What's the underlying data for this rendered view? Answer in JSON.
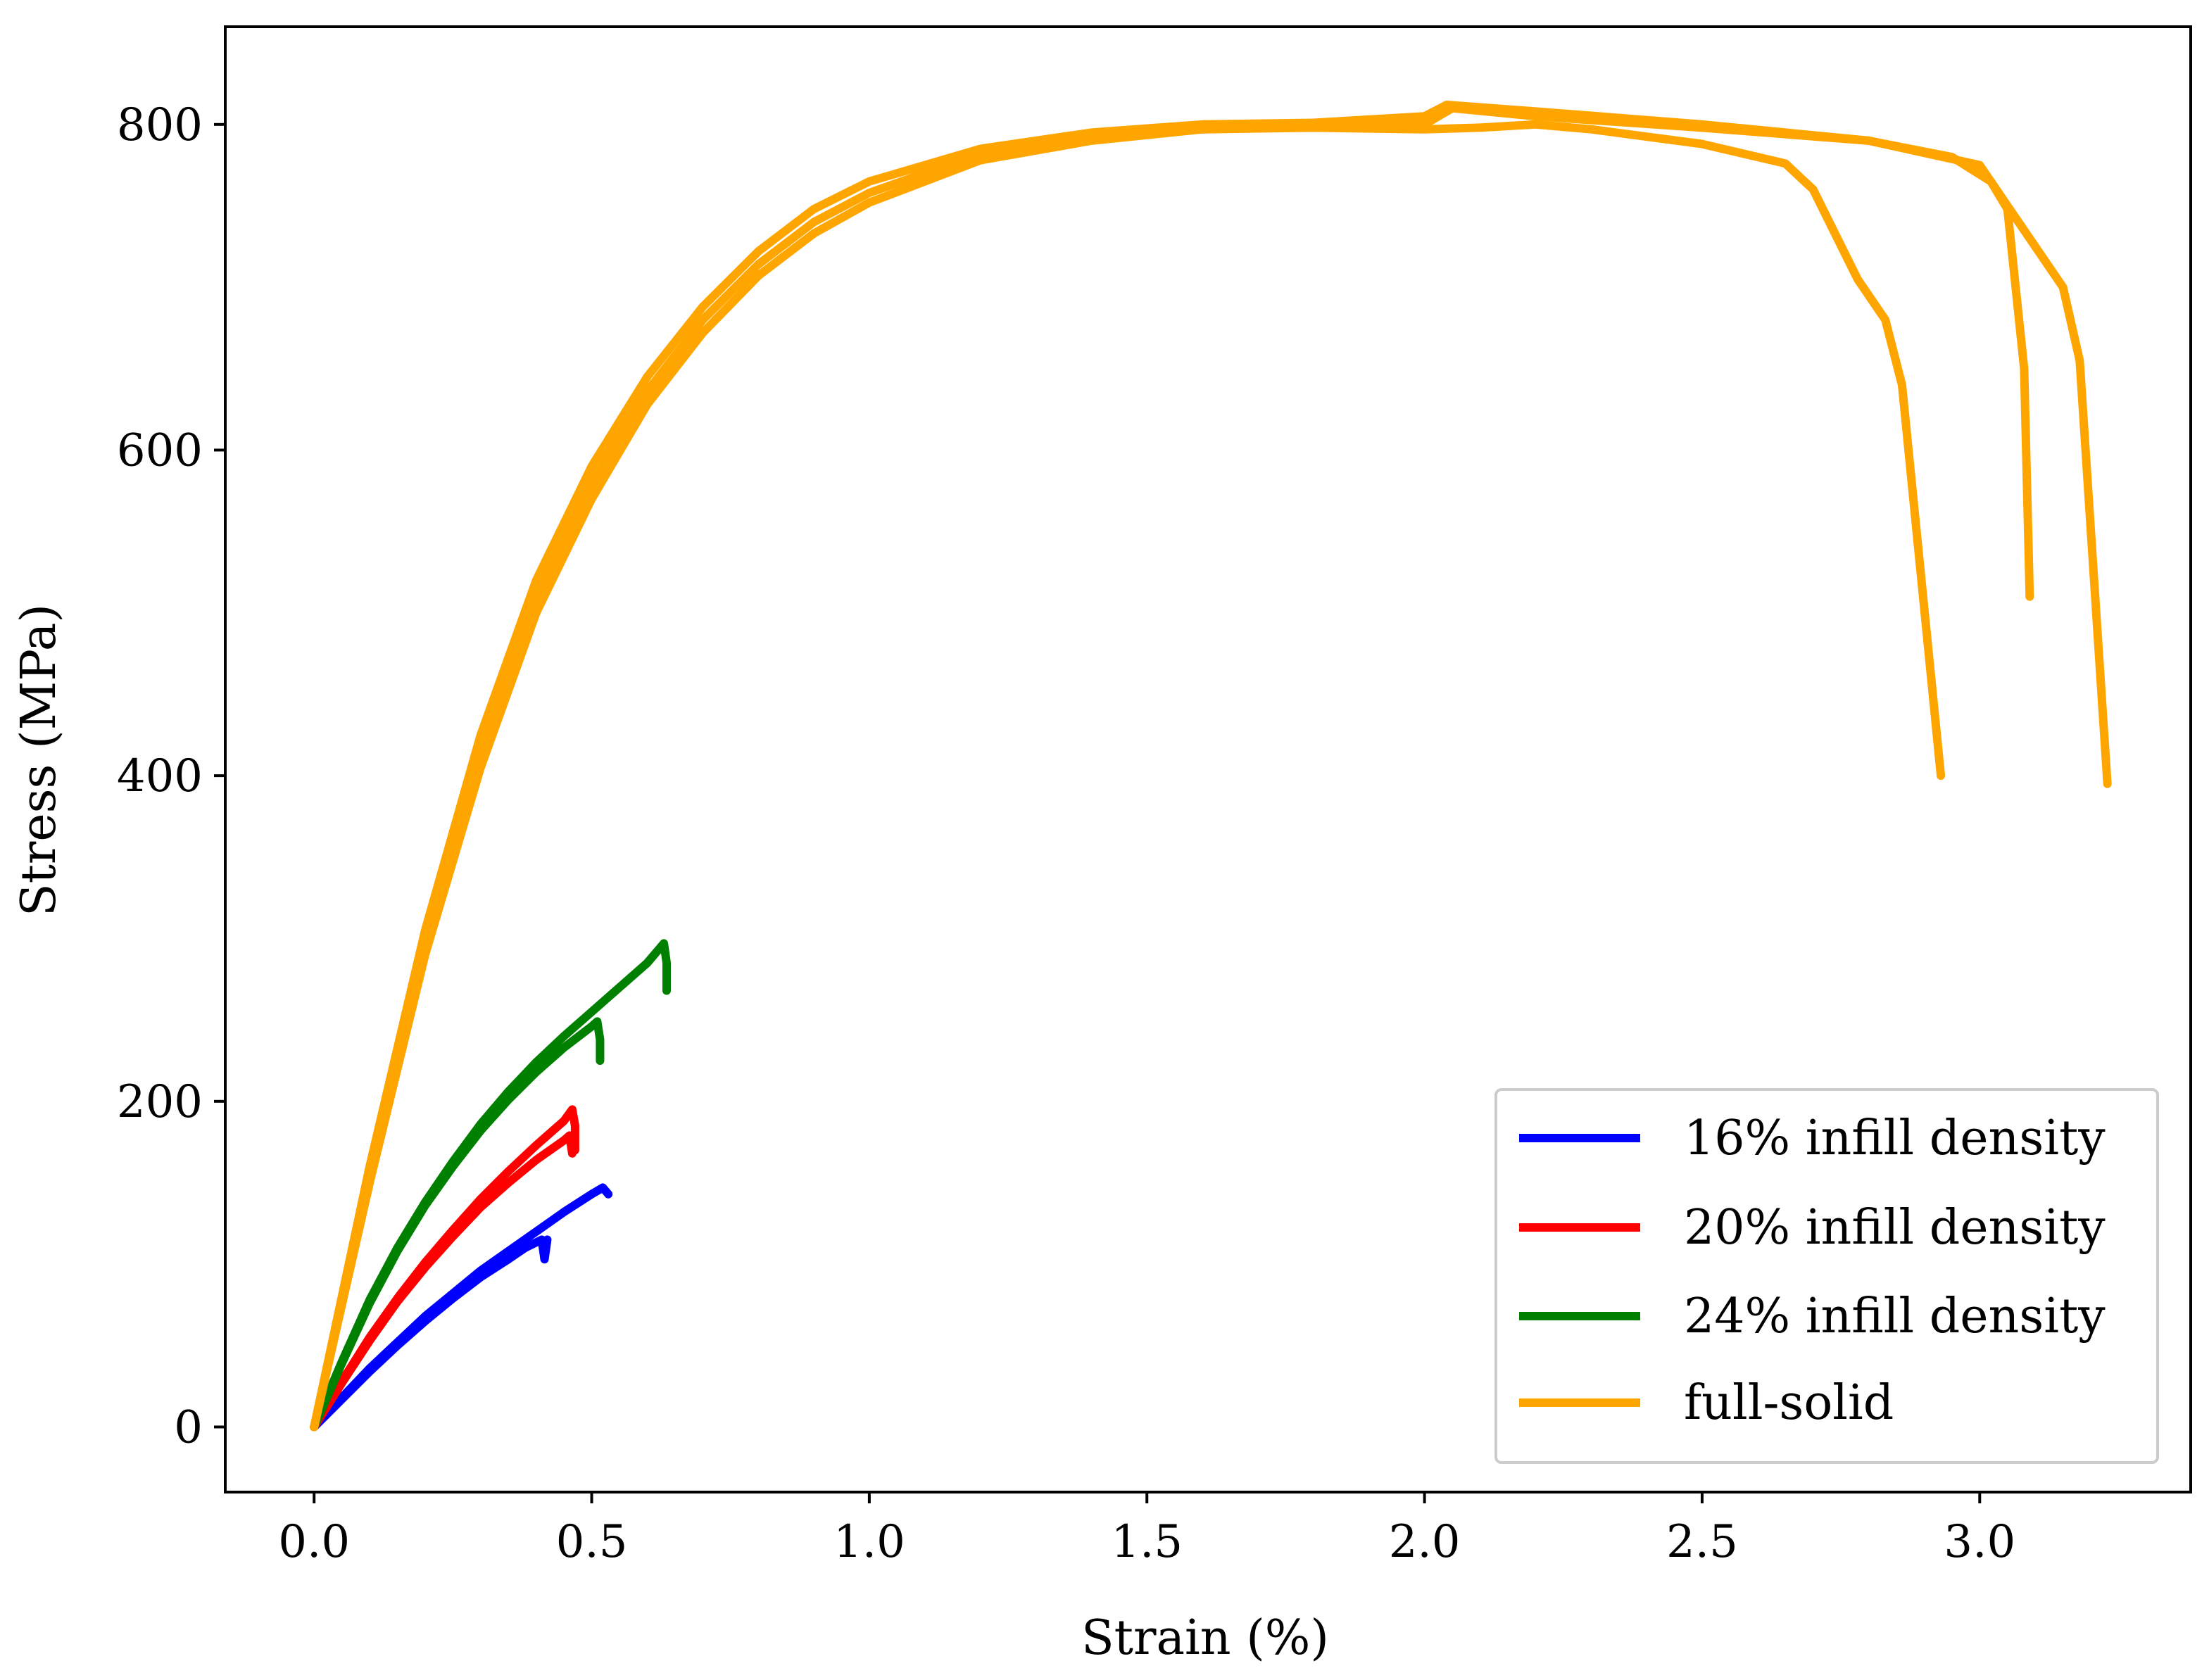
{
  "chart_data": {
    "type": "line",
    "title": "",
    "xlabel": "Strain (%)",
    "ylabel": "Stress (MPa)",
    "xlim": [
      -0.16,
      3.38
    ],
    "ylim": [
      -40,
      860
    ],
    "xticks": [
      0.0,
      0.5,
      1.0,
      1.5,
      2.0,
      2.5,
      3.0
    ],
    "xtick_labels": [
      "0.0",
      "0.5",
      "1.0",
      "1.5",
      "2.0",
      "2.5",
      "3.0"
    ],
    "yticks": [
      0,
      200,
      400,
      600,
      800
    ],
    "ytick_labels": [
      "0",
      "200",
      "400",
      "600",
      "800"
    ],
    "grid": false,
    "legend_position": "bottom-right",
    "series": [
      {
        "name": "16% infill density",
        "color": "#0000ff",
        "curves": [
          [
            [
              0,
              0
            ],
            [
              0.05,
              18
            ],
            [
              0.1,
              36
            ],
            [
              0.15,
              52
            ],
            [
              0.2,
              68
            ],
            [
              0.25,
              82
            ],
            [
              0.3,
              96
            ],
            [
              0.35,
              108
            ],
            [
              0.4,
              120
            ],
            [
              0.45,
              132
            ],
            [
              0.5,
              143
            ],
            [
              0.52,
              147
            ],
            [
              0.53,
              143
            ]
          ],
          [
            [
              0,
              0
            ],
            [
              0.05,
              17
            ],
            [
              0.1,
              34
            ],
            [
              0.15,
              50
            ],
            [
              0.2,
              65
            ],
            [
              0.25,
              79
            ],
            [
              0.3,
              92
            ],
            [
              0.35,
              103
            ],
            [
              0.38,
              110
            ],
            [
              0.41,
              115
            ],
            [
              0.415,
              103
            ],
            [
              0.42,
              115
            ]
          ]
        ]
      },
      {
        "name": "20% infill density",
        "color": "#ff0000",
        "curves": [
          [
            [
              0,
              0
            ],
            [
              0.05,
              28
            ],
            [
              0.1,
              55
            ],
            [
              0.15,
              79
            ],
            [
              0.2,
              101
            ],
            [
              0.25,
              121
            ],
            [
              0.3,
              140
            ],
            [
              0.35,
              157
            ],
            [
              0.4,
              173
            ],
            [
              0.45,
              188
            ],
            [
              0.465,
              195
            ],
            [
              0.47,
              185
            ],
            [
              0.47,
              170
            ]
          ],
          [
            [
              0,
              0
            ],
            [
              0.05,
              27
            ],
            [
              0.1,
              53
            ],
            [
              0.15,
              77
            ],
            [
              0.2,
              98
            ],
            [
              0.25,
              117
            ],
            [
              0.3,
              135
            ],
            [
              0.35,
              150
            ],
            [
              0.4,
              164
            ],
            [
              0.45,
              176
            ],
            [
              0.46,
              179
            ],
            [
              0.465,
              168
            ]
          ]
        ]
      },
      {
        "name": "24% infill density",
        "color": "#008000",
        "curves": [
          [
            [
              0,
              0
            ],
            [
              0.05,
              40
            ],
            [
              0.1,
              78
            ],
            [
              0.15,
              110
            ],
            [
              0.2,
              138
            ],
            [
              0.25,
              163
            ],
            [
              0.3,
              186
            ],
            [
              0.35,
              206
            ],
            [
              0.4,
              224
            ],
            [
              0.45,
              240
            ],
            [
              0.5,
              255
            ],
            [
              0.55,
              270
            ],
            [
              0.6,
              285
            ],
            [
              0.63,
              297
            ],
            [
              0.635,
              285
            ],
            [
              0.635,
              268
            ]
          ],
          [
            [
              0,
              0
            ],
            [
              0.05,
              39
            ],
            [
              0.1,
              76
            ],
            [
              0.15,
              108
            ],
            [
              0.2,
              136
            ],
            [
              0.25,
              160
            ],
            [
              0.3,
              182
            ],
            [
              0.35,
              201
            ],
            [
              0.4,
              218
            ],
            [
              0.45,
              233
            ],
            [
              0.5,
              246
            ],
            [
              0.51,
              249
            ],
            [
              0.515,
              238
            ],
            [
              0.515,
              225
            ]
          ]
        ]
      },
      {
        "name": "full-solid",
        "color": "#ffa500",
        "curves": [
          [
            [
              0,
              0
            ],
            [
              0.1,
              150
            ],
            [
              0.2,
              290
            ],
            [
              0.3,
              405
            ],
            [
              0.4,
              500
            ],
            [
              0.5,
              570
            ],
            [
              0.6,
              628
            ],
            [
              0.7,
              672
            ],
            [
              0.8,
              707
            ],
            [
              0.9,
              733
            ],
            [
              1.0,
              752
            ],
            [
              1.2,
              778
            ],
            [
              1.4,
              790
            ],
            [
              1.6,
              797
            ],
            [
              1.8,
              799
            ],
            [
              2.0,
              800
            ],
            [
              2.05,
              810
            ],
            [
              2.2,
              805
            ],
            [
              2.5,
              798
            ],
            [
              2.8,
              790
            ],
            [
              2.95,
              780
            ],
            [
              3.02,
              765
            ],
            [
              3.05,
              748
            ],
            [
              3.08,
              650
            ],
            [
              3.09,
              510
            ]
          ],
          [
            [
              0,
              0
            ],
            [
              0.1,
              160
            ],
            [
              0.2,
              305
            ],
            [
              0.3,
              425
            ],
            [
              0.4,
              520
            ],
            [
              0.5,
              590
            ],
            [
              0.6,
              645
            ],
            [
              0.7,
              688
            ],
            [
              0.8,
              722
            ],
            [
              0.9,
              748
            ],
            [
              1.0,
              765
            ],
            [
              1.2,
              785
            ],
            [
              1.4,
              795
            ],
            [
              1.6,
              800
            ],
            [
              1.8,
              801
            ],
            [
              2.0,
              805
            ],
            [
              2.04,
              812
            ],
            [
              2.2,
              808
            ],
            [
              2.5,
              800
            ],
            [
              2.8,
              790
            ],
            [
              3.0,
              775
            ],
            [
              3.05,
              750
            ],
            [
              3.15,
              700
            ],
            [
              3.18,
              655
            ],
            [
              3.23,
              395
            ]
          ],
          [
            [
              0,
              0
            ],
            [
              0.1,
              155
            ],
            [
              0.2,
              298
            ],
            [
              0.3,
              415
            ],
            [
              0.4,
              510
            ],
            [
              0.5,
              580
            ],
            [
              0.6,
              636
            ],
            [
              0.7,
              680
            ],
            [
              0.8,
              714
            ],
            [
              0.9,
              740
            ],
            [
              1.0,
              758
            ],
            [
              1.2,
              782
            ],
            [
              1.4,
              792
            ],
            [
              1.6,
              797
            ],
            [
              1.8,
              798
            ],
            [
              2.0,
              797
            ],
            [
              2.1,
              798
            ],
            [
              2.2,
              800
            ],
            [
              2.3,
              797
            ],
            [
              2.5,
              788
            ],
            [
              2.65,
              776
            ],
            [
              2.7,
              760
            ],
            [
              2.78,
              705
            ],
            [
              2.83,
              680
            ],
            [
              2.86,
              640
            ],
            [
              2.93,
              400
            ]
          ]
        ]
      }
    ],
    "legend": [
      {
        "label": "16% infill density",
        "color": "#0000ff"
      },
      {
        "label": "20% infill density",
        "color": "#ff0000"
      },
      {
        "label": "24% infill density",
        "color": "#008000"
      },
      {
        "label": "full-solid",
        "color": "#ffa500"
      }
    ]
  }
}
